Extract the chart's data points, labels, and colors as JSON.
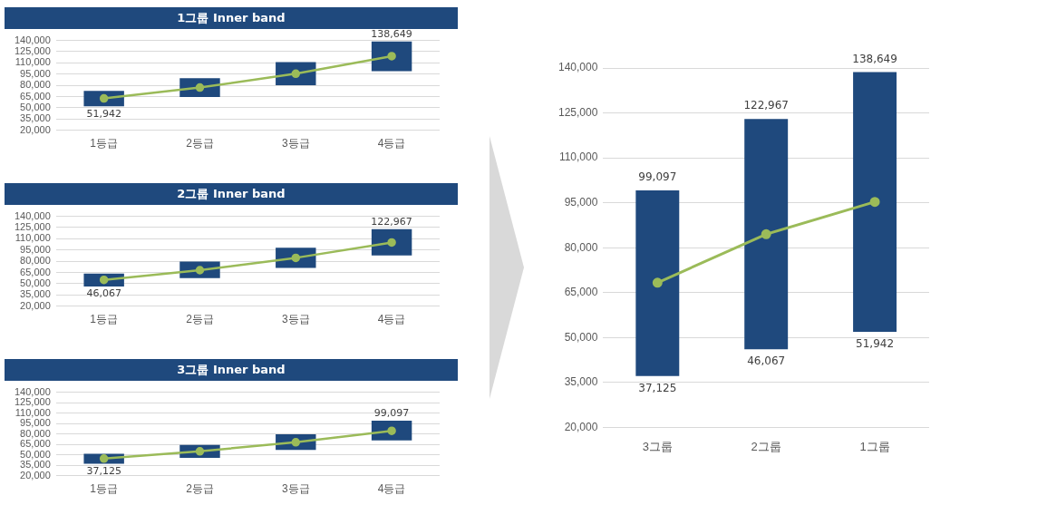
{
  "chart_data": [
    {
      "type": "bar",
      "title": "1그룹 Inner band",
      "categories": [
        "1등급",
        "2등급",
        "3등급",
        "4등급"
      ],
      "series": [
        {
          "color": "#1f497d",
          "base": [
            51942,
            64500,
            80000,
            99000
          ],
          "values": [
            20458,
            25000,
            31000,
            39649
          ]
        },
        {
          "type": "line",
          "color": "#9bbb59",
          "values": [
            62500,
            77000,
            95500,
            119000
          ]
        }
      ],
      "ylim": [
        20000,
        140000
      ],
      "yticks": [
        {
          "value": 20000,
          "label": "20,000"
        },
        {
          "value": 35000,
          "label": "35,000"
        },
        {
          "value": 50000,
          "label": "50,000"
        },
        {
          "value": 65000,
          "label": "65,000"
        },
        {
          "value": 80000,
          "label": "80,000"
        },
        {
          "value": 95000,
          "label": "95,000"
        },
        {
          "value": 110000,
          "label": "110,000"
        },
        {
          "value": 125000,
          "label": "125,000"
        },
        {
          "value": 140000,
          "label": "140,000"
        }
      ],
      "grid": "y",
      "legend": false,
      "marker": "circle",
      "annotations": [
        {
          "text": "138,649",
          "x": "4등급",
          "y": 138649
        },
        {
          "text": "51,942",
          "x": "1등급",
          "y": 51942
        }
      ]
    },
    {
      "type": "bar",
      "title": "2그룹 Inner band",
      "categories": [
        "1등급",
        "2등급",
        "3등급",
        "4등급"
      ],
      "series": [
        {
          "color": "#1f497d",
          "base": [
            46067,
            57500,
            71000,
            87700
          ],
          "values": [
            17433,
            22000,
            27000,
            35267
          ]
        },
        {
          "type": "line",
          "color": "#9bbb59",
          "values": [
            55000,
            68000,
            84500,
            105000
          ]
        }
      ],
      "ylim": [
        20000,
        140000
      ],
      "yticks": [
        {
          "value": 20000,
          "label": "20,000"
        },
        {
          "value": 35000,
          "label": "35,000"
        },
        {
          "value": 50000,
          "label": "50,000"
        },
        {
          "value": 65000,
          "label": "65,000"
        },
        {
          "value": 80000,
          "label": "80,000"
        },
        {
          "value": 95000,
          "label": "95,000"
        },
        {
          "value": 110000,
          "label": "110,000"
        },
        {
          "value": 125000,
          "label": "125,000"
        },
        {
          "value": 140000,
          "label": "140,000"
        }
      ],
      "grid": "y",
      "legend": false,
      "marker": "circle",
      "annotations": [
        {
          "text": "122,967",
          "x": "4등급",
          "y": 122967
        },
        {
          "text": "46,067",
          "x": "1등급",
          "y": 46067
        }
      ]
    },
    {
      "type": "bar",
      "title": "3그룹 Inner band",
      "categories": [
        "1등급",
        "2등급",
        "3등급",
        "4등급"
      ],
      "series": [
        {
          "color": "#1f497d",
          "base": [
            37125,
            45500,
            57000,
            70597
          ],
          "values": [
            14375,
            18500,
            22500,
            28500
          ]
        },
        {
          "type": "line",
          "color": "#9bbb59",
          "values": [
            44500,
            55000,
            68000,
            84500
          ]
        }
      ],
      "ylim": [
        20000,
        140000
      ],
      "yticks": [
        {
          "value": 20000,
          "label": "20,000"
        },
        {
          "value": 35000,
          "label": "35,000"
        },
        {
          "value": 50000,
          "label": "50,000"
        },
        {
          "value": 65000,
          "label": "65,000"
        },
        {
          "value": 80000,
          "label": "80,000"
        },
        {
          "value": 95000,
          "label": "95,000"
        },
        {
          "value": 110000,
          "label": "110,000"
        },
        {
          "value": 125000,
          "label": "125,000"
        },
        {
          "value": 140000,
          "label": "140,000"
        }
      ],
      "grid": "y",
      "legend": false,
      "marker": "circle",
      "annotations": [
        {
          "text": "99,097",
          "x": "4등급",
          "y": 99097
        },
        {
          "text": "37,125",
          "x": "1등급",
          "y": 37125
        }
      ]
    },
    {
      "type": "bar",
      "categories": [
        "3그룹",
        "2그룹",
        "1그룹"
      ],
      "series": [
        {
          "color": "#1f497d",
          "base": [
            37125,
            46067,
            51942
          ],
          "values": [
            61972,
            76900,
            86707
          ]
        },
        {
          "type": "line",
          "color": "#9bbb59",
          "values": [
            68300,
            84500,
            95300
          ]
        }
      ],
      "ylim": [
        20000,
        140000
      ],
      "yticks": [
        {
          "value": 20000,
          "label": "20,000"
        },
        {
          "value": 35000,
          "label": "35,000"
        },
        {
          "value": 50000,
          "label": "50,000"
        },
        {
          "value": 65000,
          "label": "65,000"
        },
        {
          "value": 80000,
          "label": "80,000"
        },
        {
          "value": 95000,
          "label": "95,000"
        },
        {
          "value": 110000,
          "label": "110,000"
        },
        {
          "value": 125000,
          "label": "125,000"
        },
        {
          "value": 140000,
          "label": "140,000"
        }
      ],
      "grid": "y",
      "legend": false,
      "marker": "circle",
      "annotations": [
        {
          "text": "99,097",
          "x": "3그룹",
          "y": 99097
        },
        {
          "text": "37,125",
          "x": "3그룹",
          "y": 37125
        },
        {
          "text": "122,967",
          "x": "2그룹",
          "y": 122967
        },
        {
          "text": "46,067",
          "x": "2그룹",
          "y": 46067
        },
        {
          "text": "138,649",
          "x": "1그룹",
          "y": 138649
        },
        {
          "text": "51,942",
          "x": "1그룹",
          "y": 51942
        }
      ]
    }
  ]
}
